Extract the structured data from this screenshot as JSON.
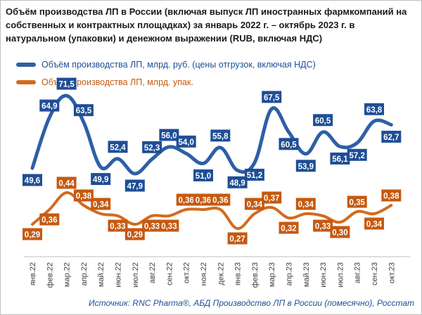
{
  "title": "Объём производства ЛП в России (включая выпуск ЛП иностранных фармкомпаний на собственных и контрактных площадках) за январь 2022 г. – октябрь 2023 г. в натуральном (упаковки) и денежном выражении (RUB, включая НДС)",
  "source": "Источник: RNC Pharma®, АБД Производство ЛП в России (помесячно), Росстат",
  "colors": {
    "rub": "#2e5fa6",
    "rub_label_bg": "#1f4e96",
    "pack": "#d46a1f",
    "pack_label_bg": "#c55a11",
    "source_text": "#1f4e96"
  },
  "chart_data": {
    "type": "line",
    "title": "Объём производства ЛП в России (включая выпуск ЛП иностранных фармкомпаний на собственных и контрактных площадках) за январь 2022 г. – октябрь 2023 г. в натуральном (упаковки) и денежном выражении (RUB, включая НДС)",
    "categories": [
      "янв.22",
      "фев.22",
      "мар.22",
      "апр.22",
      "май.22",
      "июн.22",
      "июл.22",
      "авг.22",
      "сен.22",
      "окт.22",
      "ноя.22",
      "дек.22",
      "янв.23",
      "фев.23",
      "мар.23",
      "апр.23",
      "май.23",
      "июн.23",
      "июл.23",
      "авг.23",
      "сен.23",
      "окт.23"
    ],
    "series": [
      {
        "name": "Объём производства ЛП, млрд. руб. (цены отгрузок, включая НДС)",
        "values": [
          49.6,
          64.9,
          71.5,
          63.5,
          49.9,
          52.4,
          47.9,
          52.3,
          56.0,
          54.0,
          51.0,
          55.8,
          48.9,
          51.2,
          67.5,
          60.5,
          53.9,
          60.5,
          56.1,
          57.2,
          63.8,
          62.7
        ],
        "labels": [
          "49,6",
          "64,9",
          "71,5",
          "63,5",
          "49,9",
          "52,4",
          "47,9",
          "52,3",
          "56,0",
          "54,0",
          "51,0",
          "55,8",
          "48,9",
          "51,2",
          "67,5",
          "60,5",
          "53,9",
          "60,5",
          "56,1",
          "57,2",
          "63,8",
          "62,7"
        ]
      },
      {
        "name": "Объём производства ЛП, млрд. упак.",
        "values": [
          0.29,
          0.36,
          0.44,
          0.38,
          0.34,
          0.33,
          0.29,
          0.33,
          0.33,
          0.36,
          0.36,
          0.36,
          0.27,
          0.34,
          0.37,
          0.32,
          0.34,
          0.33,
          0.3,
          0.35,
          0.34,
          0.38
        ],
        "labels": [
          "0,29",
          "0,36",
          "0,44",
          "0,38",
          "0,34",
          "0,33",
          "0,29",
          "0,33",
          "0,33",
          "0,36",
          "0,36",
          "0,36",
          "0,27",
          "0,34",
          "0,37",
          "0,32",
          "0,34",
          "0,33",
          "0,30",
          "0,35",
          "0,34",
          "0,38"
        ]
      }
    ],
    "grid": false,
    "legend": "top-left"
  }
}
